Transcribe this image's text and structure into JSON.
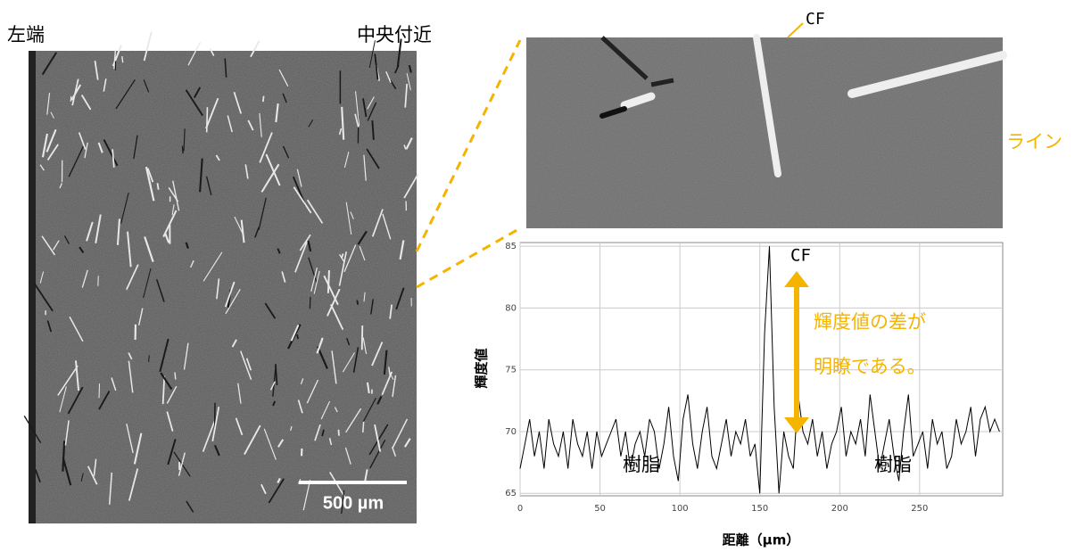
{
  "image_labels": {
    "left_end": "左端",
    "center": "中央付近",
    "scale_bar": "500 µm",
    "zoom_cf": "CF",
    "line": "ライン"
  },
  "chart_data": {
    "type": "line",
    "xlabel": "距離（μm）",
    "ylabel": "輝度値",
    "annotations": {
      "peak": "CF",
      "note1": "輝度値の差が",
      "note2": "明瞭である。",
      "resin_left": "樹脂",
      "resin_right": "樹脂"
    },
    "xlim": [
      0,
      302
    ],
    "ylim": [
      64.8,
      85.3
    ],
    "xticks": [
      0,
      50,
      100,
      150,
      200,
      250
    ],
    "yticks": [
      65,
      70,
      75,
      80,
      85
    ],
    "grid": true,
    "color": "#000000",
    "x": [
      0,
      3,
      6,
      9,
      12,
      15,
      18,
      21,
      24,
      27,
      30,
      33,
      36,
      39,
      42,
      45,
      48,
      51,
      54,
      57,
      60,
      63,
      66,
      69,
      72,
      75,
      78,
      81,
      84,
      87,
      90,
      93,
      96,
      99,
      102,
      105,
      108,
      111,
      114,
      117,
      120,
      123,
      126,
      129,
      132,
      135,
      138,
      141,
      144,
      147,
      150,
      153,
      156,
      159,
      162,
      165,
      168,
      171,
      174,
      177,
      180,
      183,
      186,
      189,
      192,
      195,
      198,
      201,
      204,
      207,
      210,
      213,
      216,
      219,
      222,
      225,
      228,
      231,
      234,
      237,
      240,
      243,
      246,
      249,
      252,
      255,
      258,
      261,
      264,
      267,
      270,
      273,
      276,
      279,
      282,
      285,
      288,
      291,
      294,
      297,
      300
    ],
    "values": [
      67,
      69,
      71,
      68,
      70,
      67,
      71,
      69,
      68,
      70,
      67,
      71,
      69,
      68,
      70,
      67,
      70,
      68,
      69,
      70,
      71,
      68,
      70,
      67,
      69,
      70,
      68,
      71,
      70,
      67,
      69,
      72,
      68,
      66,
      71,
      73,
      69,
      67,
      70,
      72,
      68,
      67,
      69,
      71,
      68,
      70,
      69,
      71,
      68,
      69,
      65,
      78,
      85,
      72,
      65,
      70,
      68,
      67,
      73,
      70,
      69,
      71,
      68,
      70,
      67,
      69,
      70,
      72,
      68,
      70,
      69,
      71,
      68,
      73,
      70,
      67,
      69,
      71,
      68,
      66,
      70,
      73,
      68,
      69,
      70,
      67,
      71,
      69,
      70,
      67,
      68,
      71,
      69,
      70,
      72,
      68,
      71,
      72,
      70,
      71,
      70
    ]
  }
}
